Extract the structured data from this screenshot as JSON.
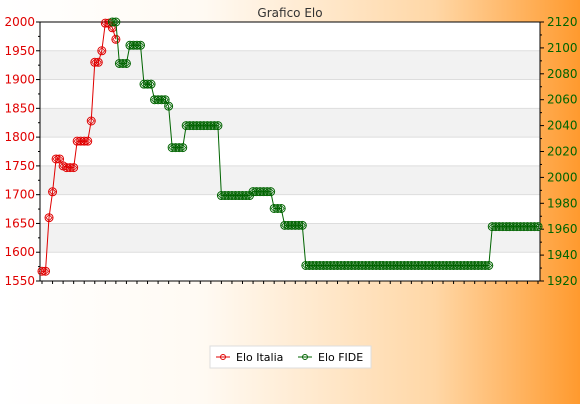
{
  "chart_data": {
    "type": "line",
    "title": "Grafico Elo",
    "grid": true,
    "legend_position": "bottom",
    "y_left": {
      "min": 1550,
      "max": 2000,
      "ticks": [
        1550,
        1600,
        1650,
        1700,
        1750,
        1800,
        1850,
        1900,
        1950,
        2000
      ]
    },
    "y_right": {
      "min": 1920,
      "max": 2120,
      "ticks": [
        1920,
        1940,
        1960,
        1980,
        2000,
        2020,
        2040,
        2060,
        2080,
        2100,
        2120
      ]
    },
    "x_count": 142,
    "x_tick_label_note": "x-axis date labels are dense and overlapping; individual dates are illegible",
    "series": [
      {
        "name": "Elo Italia",
        "axis": "left",
        "color": "#e00000",
        "points": [
          [
            0,
            1567
          ],
          [
            1,
            1567
          ],
          [
            2,
            1660
          ],
          [
            3,
            1705
          ],
          [
            4,
            1762
          ],
          [
            5,
            1762
          ],
          [
            6,
            1750
          ],
          [
            7,
            1747
          ],
          [
            8,
            1747
          ],
          [
            9,
            1747
          ],
          [
            10,
            1793
          ],
          [
            11,
            1793
          ],
          [
            12,
            1793
          ],
          [
            13,
            1793
          ],
          [
            14,
            1828
          ],
          [
            15,
            1930
          ],
          [
            16,
            1930
          ],
          [
            17,
            1950
          ],
          [
            18,
            1998
          ],
          [
            19,
            1998
          ],
          [
            20,
            1990
          ],
          [
            21,
            1970
          ]
        ]
      },
      {
        "name": "Elo FIDE",
        "axis": "right",
        "color": "#006400",
        "points": [
          [
            20,
            2120
          ],
          [
            21,
            2120
          ],
          [
            22,
            2088
          ],
          [
            23,
            2088
          ],
          [
            24,
            2088
          ],
          [
            25,
            2102
          ],
          [
            26,
            2102
          ],
          [
            27,
            2102
          ],
          [
            28,
            2102
          ],
          [
            29,
            2072
          ],
          [
            30,
            2072
          ],
          [
            31,
            2072
          ],
          [
            32,
            2060
          ],
          [
            33,
            2060
          ],
          [
            34,
            2060
          ],
          [
            35,
            2060
          ],
          [
            36,
            2055
          ],
          [
            37,
            2023
          ],
          [
            38,
            2023
          ],
          [
            39,
            2023
          ],
          [
            40,
            2023
          ],
          [
            41,
            2040
          ],
          [
            42,
            2040
          ],
          [
            43,
            2040
          ],
          [
            44,
            2040
          ],
          [
            45,
            2040
          ],
          [
            46,
            2040
          ],
          [
            47,
            2040
          ],
          [
            48,
            2040
          ],
          [
            49,
            2040
          ],
          [
            50,
            2040
          ],
          [
            51,
            1986
          ],
          [
            52,
            1986
          ],
          [
            53,
            1986
          ],
          [
            54,
            1986
          ],
          [
            55,
            1986
          ],
          [
            56,
            1986
          ],
          [
            57,
            1986
          ],
          [
            58,
            1986
          ],
          [
            59,
            1986
          ],
          [
            60,
            1989
          ],
          [
            61,
            1989
          ],
          [
            62,
            1989
          ],
          [
            63,
            1989
          ],
          [
            64,
            1989
          ],
          [
            65,
            1989
          ],
          [
            66,
            1976
          ],
          [
            67,
            1976
          ],
          [
            68,
            1976
          ],
          [
            69,
            1963
          ],
          [
            70,
            1963
          ],
          [
            71,
            1963
          ],
          [
            72,
            1963
          ],
          [
            73,
            1963
          ],
          [
            74,
            1963
          ],
          [
            75,
            1932
          ],
          [
            76,
            1932
          ],
          [
            77,
            1932
          ],
          [
            78,
            1932
          ],
          [
            79,
            1932
          ],
          [
            80,
            1932
          ],
          [
            81,
            1932
          ],
          [
            82,
            1932
          ],
          [
            83,
            1932
          ],
          [
            84,
            1932
          ],
          [
            85,
            1932
          ],
          [
            86,
            1932
          ],
          [
            87,
            1932
          ],
          [
            88,
            1932
          ],
          [
            89,
            1932
          ],
          [
            90,
            1932
          ],
          [
            91,
            1932
          ],
          [
            92,
            1932
          ],
          [
            93,
            1932
          ],
          [
            94,
            1932
          ],
          [
            95,
            1932
          ],
          [
            96,
            1932
          ],
          [
            97,
            1932
          ],
          [
            98,
            1932
          ],
          [
            99,
            1932
          ],
          [
            100,
            1932
          ],
          [
            101,
            1932
          ],
          [
            102,
            1932
          ],
          [
            103,
            1932
          ],
          [
            104,
            1932
          ],
          [
            105,
            1932
          ],
          [
            106,
            1932
          ],
          [
            107,
            1932
          ],
          [
            108,
            1932
          ],
          [
            109,
            1932
          ],
          [
            110,
            1932
          ],
          [
            111,
            1932
          ],
          [
            112,
            1932
          ],
          [
            113,
            1932
          ],
          [
            114,
            1932
          ],
          [
            115,
            1932
          ],
          [
            116,
            1932
          ],
          [
            117,
            1932
          ],
          [
            118,
            1932
          ],
          [
            119,
            1932
          ],
          [
            120,
            1932
          ],
          [
            121,
            1932
          ],
          [
            122,
            1932
          ],
          [
            123,
            1932
          ],
          [
            124,
            1932
          ],
          [
            125,
            1932
          ],
          [
            126,
            1932
          ],
          [
            127,
            1932
          ],
          [
            128,
            1962
          ],
          [
            129,
            1962
          ],
          [
            130,
            1962
          ],
          [
            131,
            1962
          ],
          [
            132,
            1962
          ],
          [
            133,
            1962
          ],
          [
            134,
            1962
          ],
          [
            135,
            1962
          ],
          [
            136,
            1962
          ],
          [
            137,
            1962
          ],
          [
            138,
            1962
          ],
          [
            139,
            1962
          ],
          [
            140,
            1962
          ],
          [
            141,
            1962
          ]
        ]
      }
    ]
  }
}
